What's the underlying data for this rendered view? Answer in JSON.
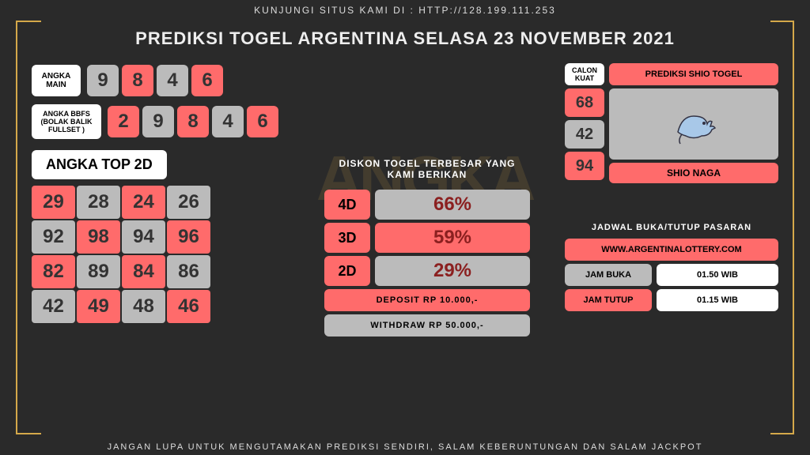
{
  "colors": {
    "red": "#ff6b6b",
    "gray": "#bbb",
    "dark": "#333",
    "white": "#fff"
  },
  "top_notice": "KUNJUNGI SITUS KAMI DI : HTTP://128.199.111.253",
  "title": "PREDIKSI TOGEL ARGENTINA SELASA 23 NOVEMBER 2021",
  "angka_main": {
    "label": "ANGKA MAIN",
    "items": [
      {
        "v": "9",
        "c": "gray"
      },
      {
        "v": "8",
        "c": "red"
      },
      {
        "v": "4",
        "c": "gray"
      },
      {
        "v": "6",
        "c": "red"
      }
    ]
  },
  "angka_bbfs": {
    "label": "ANGKA BBFS (BOLAK BALIK FULLSET )",
    "items": [
      {
        "v": "2",
        "c": "red"
      },
      {
        "v": "9",
        "c": "gray"
      },
      {
        "v": "8",
        "c": "red"
      },
      {
        "v": "4",
        "c": "gray"
      },
      {
        "v": "6",
        "c": "red"
      }
    ]
  },
  "top2d": {
    "label": "ANGKA TOP 2D",
    "cells": [
      {
        "v": "29",
        "c": "red"
      },
      {
        "v": "28",
        "c": "gray"
      },
      {
        "v": "24",
        "c": "red"
      },
      {
        "v": "26",
        "c": "gray"
      },
      {
        "v": "92",
        "c": "gray"
      },
      {
        "v": "98",
        "c": "red"
      },
      {
        "v": "94",
        "c": "gray"
      },
      {
        "v": "96",
        "c": "red"
      },
      {
        "v": "82",
        "c": "red"
      },
      {
        "v": "89",
        "c": "gray"
      },
      {
        "v": "84",
        "c": "red"
      },
      {
        "v": "86",
        "c": "gray"
      },
      {
        "v": "42",
        "c": "gray"
      },
      {
        "v": "49",
        "c": "red"
      },
      {
        "v": "48",
        "c": "gray"
      },
      {
        "v": "46",
        "c": "red"
      }
    ]
  },
  "discount": {
    "head": "DISKON TOGEL TERBESAR YANG KAMI BERIKAN",
    "rows": [
      {
        "label": "4D",
        "val": "66%",
        "bg": "gray",
        "fg": "#8b2020"
      },
      {
        "label": "3D",
        "val": "59%",
        "bg": "red",
        "fg": "#8b2020"
      },
      {
        "label": "2D",
        "val": "29%",
        "bg": "gray",
        "fg": "#8b2020"
      }
    ],
    "deposit": {
      "text": "DEPOSIT RP 10.000,-",
      "bg": "red"
    },
    "withdraw": {
      "text": "WITHDRAW RP 50.000,-",
      "bg": "gray"
    }
  },
  "calon": {
    "label": "CALON KUAT",
    "nums": [
      {
        "v": "68",
        "c": "red"
      },
      {
        "v": "42",
        "c": "gray"
      },
      {
        "v": "94",
        "c": "red"
      }
    ]
  },
  "shio": {
    "head": "PREDIKSI SHIO TOGEL",
    "name": "SHIO NAGA"
  },
  "schedule": {
    "head": "JADWAL BUKA/TUTUP PASARAN",
    "site": "WWW.ARGENTINALOTTERY.COM",
    "rows": [
      {
        "label": "JAM BUKA",
        "lbg": "gray",
        "val": "01.50 WIB",
        "vbg": "white"
      },
      {
        "label": "JAM TUTUP",
        "lbg": "red",
        "val": "01.15 WIB",
        "vbg": "white"
      }
    ]
  },
  "bottom": "JANGAN LUPA UNTUK MENGUTAMAKAN PREDIKSI SENDIRI, SALAM KEBERUNTUNGAN DAN SALAM JACKPOT",
  "watermark": "ANGKA"
}
